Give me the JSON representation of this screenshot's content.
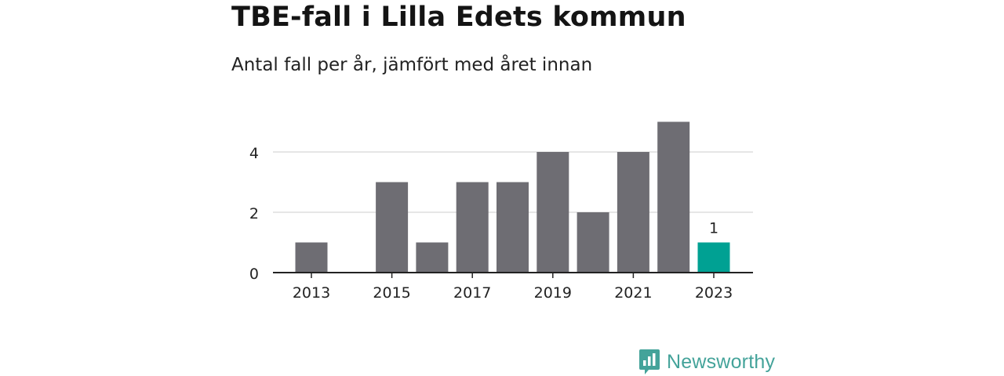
{
  "header": {
    "title": "TBE-fall i Lilla Edets kommun",
    "subtitle": "Antal fall per år, jämfört med året innan"
  },
  "brand": {
    "name": "Newsworthy",
    "color": "#44a39a"
  },
  "colors": {
    "bar": "#6e6d73",
    "highlight": "#00a193",
    "grid": "#dddddd",
    "axis": "#222222"
  },
  "chart_data": {
    "type": "bar",
    "title": "TBE-fall i Lilla Edets kommun",
    "subtitle": "Antal fall per år, jämfört med året innan",
    "xlabel": "",
    "ylabel": "",
    "categories": [
      "2013",
      "2014",
      "2015",
      "2016",
      "2017",
      "2018",
      "2019",
      "2020",
      "2021",
      "2022",
      "2023"
    ],
    "values": [
      1,
      0,
      3,
      1,
      3,
      3,
      4,
      2,
      4,
      5,
      1
    ],
    "highlight_index": 10,
    "highlight_label": "1",
    "x_tick_labels": [
      "2013",
      "2015",
      "2017",
      "2019",
      "2021",
      "2023"
    ],
    "y_ticks": [
      "0",
      "2",
      "4"
    ],
    "ylim": [
      0,
      5
    ],
    "grid": true,
    "legend": "none"
  }
}
